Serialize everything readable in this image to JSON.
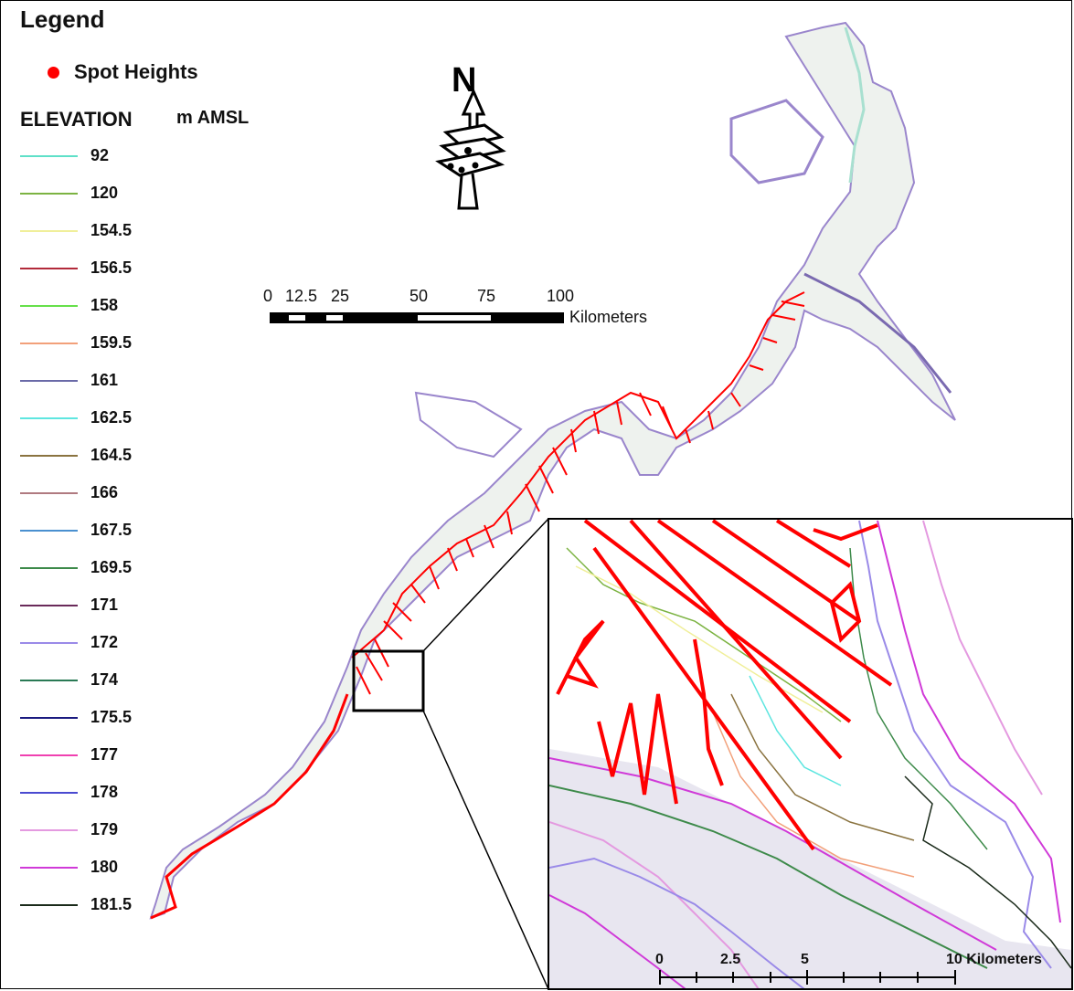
{
  "legend": {
    "title": "Legend",
    "spot_heights_label": "Spot Heights",
    "spot_heights_color": "#ff0000",
    "elevation_heading": "ELEVATION",
    "elevation_unit": "m AMSL",
    "items": [
      {
        "label": "92",
        "color": "#5fe0c8"
      },
      {
        "label": "120",
        "color": "#7cb342"
      },
      {
        "label": "154.5",
        "color": "#f0ef9a"
      },
      {
        "label": "156.5",
        "color": "#b22a3a"
      },
      {
        "label": "158",
        "color": "#66e04a"
      },
      {
        "label": "159.5",
        "color": "#f2a07a"
      },
      {
        "label": "161",
        "color": "#6a6aa8"
      },
      {
        "label": "162.5",
        "color": "#5ee6e0"
      },
      {
        "label": "164.5",
        "color": "#8a7340"
      },
      {
        "label": "166",
        "color": "#b07a80"
      },
      {
        "label": "167.5",
        "color": "#4a90d0"
      },
      {
        "label": "169.5",
        "color": "#3d8a4a"
      },
      {
        "label": "171",
        "color": "#6a2a5a"
      },
      {
        "label": "172",
        "color": "#9a8ae8"
      },
      {
        "label": "174",
        "color": "#2a7a55"
      },
      {
        "label": "175.5",
        "color": "#1a1a80"
      },
      {
        "label": "177",
        "color": "#f040b0"
      },
      {
        "label": "178",
        "color": "#4a4ad0"
      },
      {
        "label": "179",
        "color": "#e49ae0"
      },
      {
        "label": "180",
        "color": "#d03ad8"
      },
      {
        "label": "181.5",
        "color": "#1a2a1a"
      }
    ]
  },
  "north_arrow": {
    "letter": "N"
  },
  "scale_bar": {
    "labels": [
      "0",
      "12.5",
      "25",
      "50",
      "75",
      "100"
    ],
    "unit": "Kilometers"
  },
  "inset_scale_bar": {
    "labels": [
      "0",
      "2.5",
      "5",
      "10 Kilometers"
    ]
  }
}
